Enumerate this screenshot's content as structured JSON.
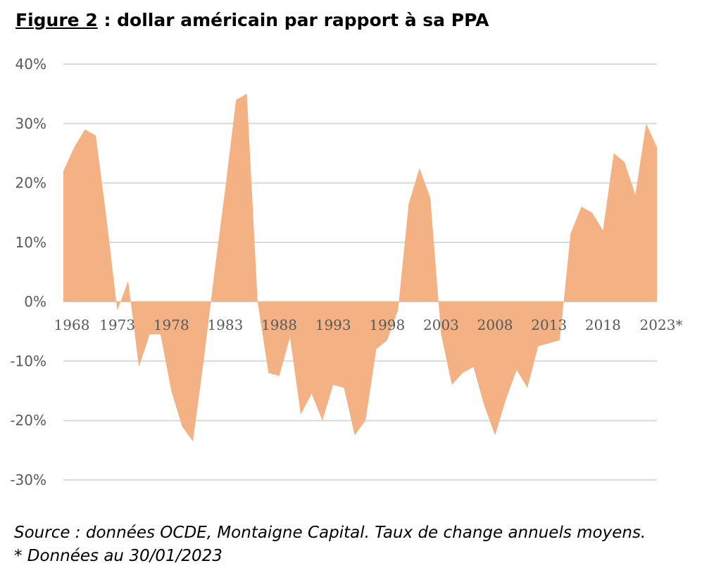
{
  "title": {
    "label": "Figure 2",
    "text": " : dollar américain par rapport à sa PPA"
  },
  "footer": {
    "line1": "Source : données OCDE, Montaigne Capital. Taux de change annuels moyens.",
    "line2": "* Données au 30/01/2023"
  },
  "colors": {
    "area": "#f4b183",
    "grid": "#d9d9d9",
    "tick_text": "#595959"
  },
  "chart_data": {
    "type": "area",
    "title": "Figure 2 : dollar américain par rapport à sa PPA",
    "xlabel": "",
    "ylabel": "",
    "ylim": [
      -0.3,
      0.4
    ],
    "y_ticks": [
      0.4,
      0.3,
      0.2,
      0.1,
      0,
      -0.1,
      -0.2,
      -0.3
    ],
    "y_tick_labels": [
      "40%",
      "30%",
      "20%",
      "10%",
      "0%",
      "-10%",
      "-20%",
      "-30%"
    ],
    "x_tick_labels": [
      "1968",
      "1973",
      "1978",
      "1983",
      "1988",
      "1993",
      "1998",
      "2003",
      "2008",
      "2013",
      "2018",
      "2023*"
    ],
    "grid": true,
    "legend": "none",
    "x": [
      1968,
      1969,
      1970,
      1971,
      1972,
      1973,
      1974,
      1975,
      1976,
      1977,
      1978,
      1979,
      1980,
      1981,
      1982,
      1983,
      1984,
      1985,
      1986,
      1987,
      1988,
      1989,
      1990,
      1991,
      1992,
      1993,
      1994,
      1995,
      1996,
      1997,
      1998,
      1999,
      2000,
      2001,
      2002,
      2003,
      2004,
      2005,
      2006,
      2007,
      2008,
      2009,
      2010,
      2011,
      2012,
      2013,
      2014,
      2015,
      2016,
      2017,
      2018,
      2019,
      2020,
      2021,
      2022,
      2023
    ],
    "values": [
      0.22,
      0.26,
      0.29,
      0.28,
      0.14,
      -0.015,
      0.035,
      -0.11,
      -0.055,
      -0.055,
      -0.15,
      -0.21,
      -0.235,
      -0.1,
      0.05,
      0.19,
      0.34,
      0.35,
      0.0,
      -0.12,
      -0.125,
      -0.06,
      -0.19,
      -0.155,
      -0.2,
      -0.14,
      -0.145,
      -0.225,
      -0.2,
      -0.08,
      -0.065,
      -0.015,
      0.165,
      0.225,
      0.175,
      -0.055,
      -0.14,
      -0.12,
      -0.11,
      -0.175,
      -0.225,
      -0.165,
      -0.115,
      -0.145,
      -0.075,
      -0.07,
      -0.065,
      0.115,
      0.16,
      0.15,
      0.12,
      0.25,
      0.235,
      0.18,
      0.3,
      0.26
    ]
  }
}
